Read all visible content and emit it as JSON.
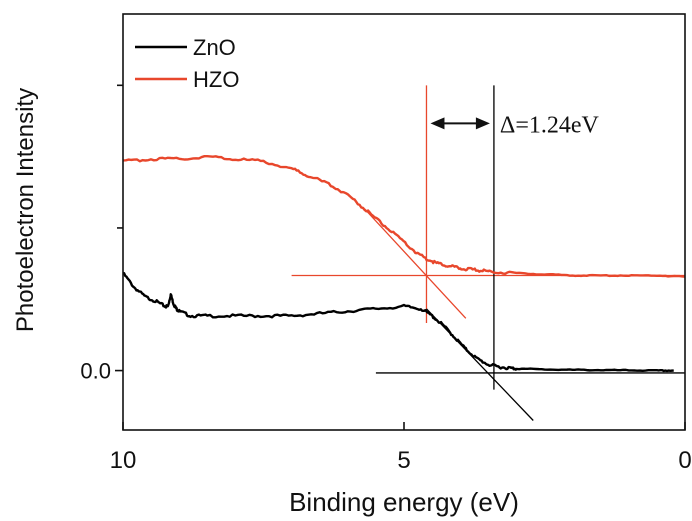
{
  "chart_data": {
    "type": "line",
    "xlabel": "Binding energy (eV)",
    "ylabel": "Photoelectron Intensity",
    "xlim": [
      10,
      0
    ],
    "ylim": [
      -0.25,
      1.5
    ],
    "x_ticks": [
      10,
      5,
      0
    ],
    "x_tick_labels": [
      "10",
      "5",
      "0"
    ],
    "y_ticks": [
      0.0
    ],
    "y_tick_labels": [
      "0.0"
    ],
    "legend_position": "top-left",
    "grid": false,
    "series": [
      {
        "name": "ZnO",
        "color": "#000000",
        "x": [
          10,
          9.8,
          9.6,
          9.4,
          9.25,
          9.2,
          9.15,
          9.1,
          9.05,
          9.0,
          8.8,
          8.5,
          8.0,
          7.5,
          7.0,
          6.5,
          6.0,
          5.5,
          5.0,
          4.7,
          4.5,
          4.3,
          4.1,
          3.9,
          3.7,
          3.5,
          3.3,
          3.1,
          3.0,
          2.5,
          2.0,
          1.5,
          1.0,
          0.5,
          0.2
        ],
        "y": [
          0.41,
          0.35,
          0.31,
          0.29,
          0.27,
          0.27,
          0.32,
          0.28,
          0.26,
          0.25,
          0.23,
          0.23,
          0.23,
          0.23,
          0.23,
          0.24,
          0.25,
          0.26,
          0.27,
          0.26,
          0.23,
          0.19,
          0.14,
          0.09,
          0.05,
          0.025,
          0.015,
          0.01,
          0.008,
          0.005,
          0.003,
          0.002,
          0.001,
          0.0,
          0.0
        ]
      },
      {
        "name": "HZO",
        "color": "#e8472c",
        "x": [
          10,
          9.5,
          9.0,
          8.5,
          8.0,
          7.5,
          7.0,
          6.7,
          6.3,
          6.0,
          5.7,
          5.4,
          5.1,
          4.8,
          4.6,
          4.4,
          4.2,
          4.0,
          3.8,
          3.6,
          3.4,
          3.0,
          2.5,
          2.0,
          1.5,
          1.0,
          0.5,
          0.0
        ],
        "y": [
          0.88,
          0.89,
          0.89,
          0.9,
          0.89,
          0.88,
          0.85,
          0.82,
          0.78,
          0.74,
          0.68,
          0.62,
          0.56,
          0.5,
          0.47,
          0.45,
          0.44,
          0.43,
          0.425,
          0.42,
          0.415,
          0.41,
          0.405,
          0.4,
          0.4,
          0.4,
          0.4,
          0.395
        ]
      }
    ],
    "guide_lines": [
      {
        "name": "hzo-baseline",
        "color": "#e8472c",
        "x": [
          7.0,
          0.0
        ],
        "y": [
          0.4,
          0.4
        ]
      },
      {
        "name": "hzo-slope",
        "color": "#e8472c",
        "x": [
          5.7,
          3.9
        ],
        "y": [
          0.68,
          0.22
        ]
      },
      {
        "name": "hzo-onset",
        "color": "#e8472c",
        "x": [
          4.6,
          4.6
        ],
        "y": [
          0.2,
          1.2
        ]
      },
      {
        "name": "zno-baseline",
        "color": "#000000",
        "x": [
          5.5,
          0.0
        ],
        "y": [
          -0.01,
          -0.01
        ]
      },
      {
        "name": "zno-slope",
        "color": "#000000",
        "x": [
          4.6,
          2.7
        ],
        "y": [
          0.26,
          -0.21
        ]
      },
      {
        "name": "zno-onset",
        "color": "#000000",
        "x": [
          3.4,
          3.4
        ],
        "y": [
          -0.08,
          1.2
        ]
      }
    ],
    "annotations": [
      {
        "text": "Δ=1.24eV",
        "x1": 4.6,
        "x2": 3.4,
        "y": 1.04
      }
    ]
  }
}
